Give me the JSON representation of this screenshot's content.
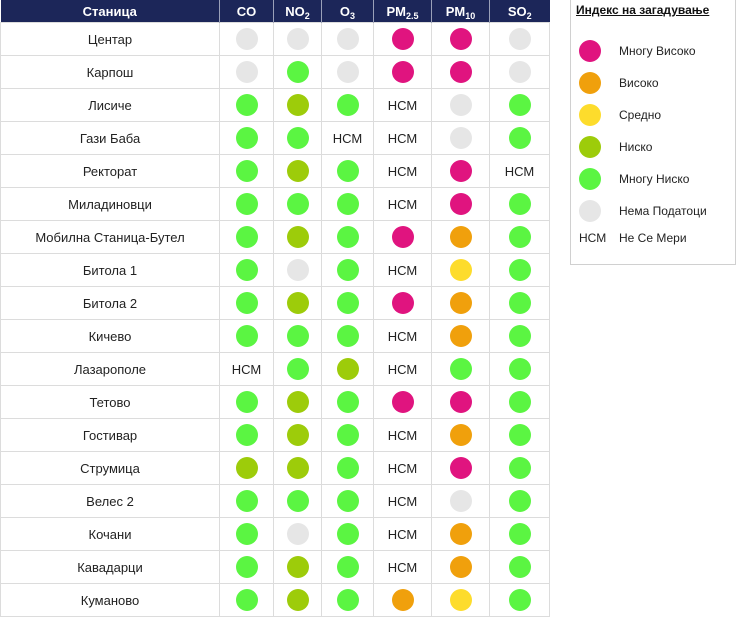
{
  "table": {
    "headers": {
      "station": "Станица",
      "pollutants": [
        {
          "base": "CO",
          "sub": ""
        },
        {
          "base": "NO",
          "sub": "2"
        },
        {
          "base": "O",
          "sub": "3"
        },
        {
          "base": "PM",
          "sub": "2.5"
        },
        {
          "base": "PM",
          "sub": "10"
        },
        {
          "base": "SO",
          "sub": "2"
        }
      ]
    },
    "rows": [
      {
        "station": "Центар",
        "values": [
          "none",
          "none",
          "none",
          "very_high",
          "very_high",
          "none"
        ]
      },
      {
        "station": "Карпош",
        "values": [
          "none",
          "very_low",
          "none",
          "very_high",
          "very_high",
          "none"
        ]
      },
      {
        "station": "Лисиче",
        "values": [
          "very_low",
          "low",
          "very_low",
          "NSM",
          "none",
          "very_low"
        ]
      },
      {
        "station": "Гази Баба",
        "values": [
          "very_low",
          "very_low",
          "NSM",
          "NSM",
          "none",
          "very_low"
        ]
      },
      {
        "station": "Ректорат",
        "values": [
          "very_low",
          "low",
          "very_low",
          "NSM",
          "very_high",
          "NSM"
        ]
      },
      {
        "station": "Миладиновци",
        "values": [
          "very_low",
          "very_low",
          "very_low",
          "NSM",
          "very_high",
          "very_low"
        ]
      },
      {
        "station": "Мобилна Станица-Бутел",
        "values": [
          "very_low",
          "low",
          "very_low",
          "very_high",
          "high",
          "very_low"
        ]
      },
      {
        "station": "Битола 1",
        "values": [
          "very_low",
          "none",
          "very_low",
          "NSM",
          "medium",
          "very_low"
        ]
      },
      {
        "station": "Битола 2",
        "values": [
          "very_low",
          "low",
          "very_low",
          "very_high",
          "high",
          "very_low"
        ]
      },
      {
        "station": "Кичево",
        "values": [
          "very_low",
          "very_low",
          "very_low",
          "NSM",
          "high",
          "very_low"
        ]
      },
      {
        "station": "Лазарополе",
        "values": [
          "NSM",
          "very_low",
          "low",
          "NSM",
          "very_low",
          "very_low"
        ]
      },
      {
        "station": "Тетово",
        "values": [
          "very_low",
          "low",
          "very_low",
          "very_high",
          "very_high",
          "very_low"
        ]
      },
      {
        "station": "Гостивар",
        "values": [
          "very_low",
          "low",
          "very_low",
          "NSM",
          "high",
          "very_low"
        ]
      },
      {
        "station": "Струмица",
        "values": [
          "low",
          "low",
          "very_low",
          "NSM",
          "very_high",
          "very_low"
        ]
      },
      {
        "station": "Велес 2",
        "values": [
          "very_low",
          "very_low",
          "very_low",
          "NSM",
          "none",
          "very_low"
        ]
      },
      {
        "station": "Кочани",
        "values": [
          "very_low",
          "none",
          "very_low",
          "NSM",
          "high",
          "very_low"
        ]
      },
      {
        "station": "Кавадарци",
        "values": [
          "very_low",
          "low",
          "very_low",
          "NSM",
          "high",
          "very_low"
        ]
      },
      {
        "station": "Куманово",
        "values": [
          "very_low",
          "low",
          "very_low",
          "high",
          "medium",
          "very_low"
        ]
      }
    ],
    "nsm_text": "НСМ"
  },
  "levels": {
    "very_high": {
      "label": "Многу Високо",
      "color": "#e0147f"
    },
    "high": {
      "label": "Високо",
      "color": "#f0a00c"
    },
    "medium": {
      "label": "Средно",
      "color": "#fddc2c"
    },
    "low": {
      "label": "Ниско",
      "color": "#9dcc0a"
    },
    "very_low": {
      "label": "Многу Ниско",
      "color": "#5bf542"
    },
    "none": {
      "label": "Нема Податоци",
      "color": "#e6e6e6"
    }
  },
  "legend": {
    "title": "Индекс на загадување",
    "order": [
      "very_high",
      "high",
      "medium",
      "low",
      "very_low",
      "none"
    ],
    "nsm_key": "НСМ",
    "nsm_label": "Не Се Мери"
  },
  "colors": {
    "header_bg": "#1c2659",
    "header_text": "#ffffff"
  }
}
